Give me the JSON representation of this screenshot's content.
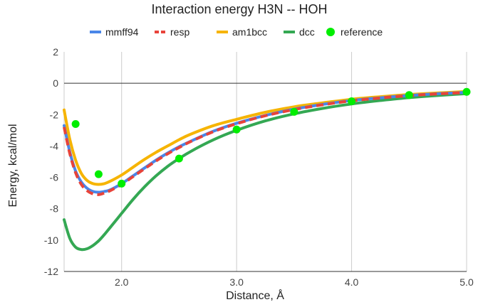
{
  "chart_data": {
    "type": "line",
    "title": "Interaction energy H3N -- HOH",
    "xlabel": "Distance, Å",
    "ylabel": "Energy, kcal/mol",
    "xlim": [
      1.5,
      5.0
    ],
    "ylim": [
      -12,
      2
    ],
    "x_ticks": [
      "2.0",
      "3.0",
      "4.0",
      "5.0"
    ],
    "y_ticks": [
      "2",
      "0",
      "-2",
      "-4",
      "-6",
      "-8",
      "-10",
      "-12"
    ],
    "grid": "vertical",
    "legend_position": "top",
    "series": [
      {
        "name": "mmff94",
        "color": "#4a86e8",
        "style": "line",
        "x": [
          1.5,
          1.55,
          1.6,
          1.65,
          1.7,
          1.75,
          1.8,
          1.85,
          1.9,
          2.0,
          2.1,
          2.2,
          2.3,
          2.4,
          2.5,
          2.6,
          2.8,
          3.0,
          3.25,
          3.5,
          3.75,
          4.0,
          4.25,
          4.5,
          4.75,
          5.0
        ],
        "y": [
          -2.7,
          -4.4,
          -5.6,
          -6.3,
          -6.7,
          -6.9,
          -6.95,
          -6.9,
          -6.8,
          -6.4,
          -5.9,
          -5.4,
          -4.9,
          -4.45,
          -4.05,
          -3.7,
          -3.05,
          -2.55,
          -2.05,
          -1.65,
          -1.35,
          -1.1,
          -0.93,
          -0.78,
          -0.67,
          -0.58
        ]
      },
      {
        "name": "resp",
        "color": "#e8433a",
        "style": "dashed",
        "x": [
          1.5,
          1.55,
          1.6,
          1.65,
          1.7,
          1.75,
          1.8,
          1.85,
          1.9,
          2.0,
          2.1,
          2.2,
          2.3,
          2.4,
          2.5,
          2.6,
          2.8,
          3.0,
          3.25,
          3.5,
          3.75,
          4.0,
          4.25,
          4.5,
          4.75,
          5.0
        ],
        "y": [
          -2.8,
          -4.5,
          -5.7,
          -6.45,
          -6.85,
          -7.05,
          -7.1,
          -7.0,
          -6.85,
          -6.45,
          -5.95,
          -5.45,
          -4.95,
          -4.5,
          -4.1,
          -3.72,
          -3.08,
          -2.58,
          -2.07,
          -1.68,
          -1.37,
          -1.12,
          -0.94,
          -0.79,
          -0.68,
          -0.59
        ]
      },
      {
        "name": "am1bcc",
        "color": "#f6b400",
        "style": "line",
        "x": [
          1.5,
          1.55,
          1.6,
          1.65,
          1.7,
          1.75,
          1.8,
          1.85,
          1.9,
          2.0,
          2.1,
          2.2,
          2.3,
          2.4,
          2.5,
          2.6,
          2.8,
          3.0,
          3.25,
          3.5,
          3.75,
          4.0,
          4.25,
          4.5,
          4.75,
          5.0
        ],
        "y": [
          -1.7,
          -3.6,
          -4.9,
          -5.75,
          -6.2,
          -6.4,
          -6.45,
          -6.4,
          -6.25,
          -5.85,
          -5.35,
          -4.85,
          -4.4,
          -4.0,
          -3.6,
          -3.25,
          -2.7,
          -2.3,
          -1.85,
          -1.5,
          -1.25,
          -1.02,
          -0.86,
          -0.72,
          -0.62,
          -0.53
        ]
      },
      {
        "name": "dcc",
        "color": "#34a853",
        "style": "line",
        "x": [
          1.5,
          1.55,
          1.6,
          1.65,
          1.7,
          1.75,
          1.8,
          1.85,
          1.9,
          2.0,
          2.1,
          2.2,
          2.3,
          2.4,
          2.5,
          2.6,
          2.8,
          3.0,
          3.25,
          3.5,
          3.75,
          4.0,
          4.25,
          4.5,
          4.75,
          5.0
        ],
        "y": [
          -8.7,
          -9.9,
          -10.45,
          -10.6,
          -10.55,
          -10.35,
          -10.05,
          -9.65,
          -9.2,
          -8.3,
          -7.4,
          -6.6,
          -5.9,
          -5.3,
          -4.8,
          -4.35,
          -3.6,
          -3.0,
          -2.4,
          -1.95,
          -1.6,
          -1.32,
          -1.1,
          -0.92,
          -0.78,
          -0.66
        ]
      },
      {
        "name": "reference",
        "color": "#00ee00",
        "style": "markers",
        "x": [
          1.6,
          1.8,
          2.0,
          2.5,
          3.0,
          3.5,
          4.0,
          4.5,
          5.0
        ],
        "y": [
          -2.6,
          -5.8,
          -6.4,
          -4.8,
          -2.95,
          -1.82,
          -1.15,
          -0.75,
          -0.55
        ]
      }
    ]
  }
}
